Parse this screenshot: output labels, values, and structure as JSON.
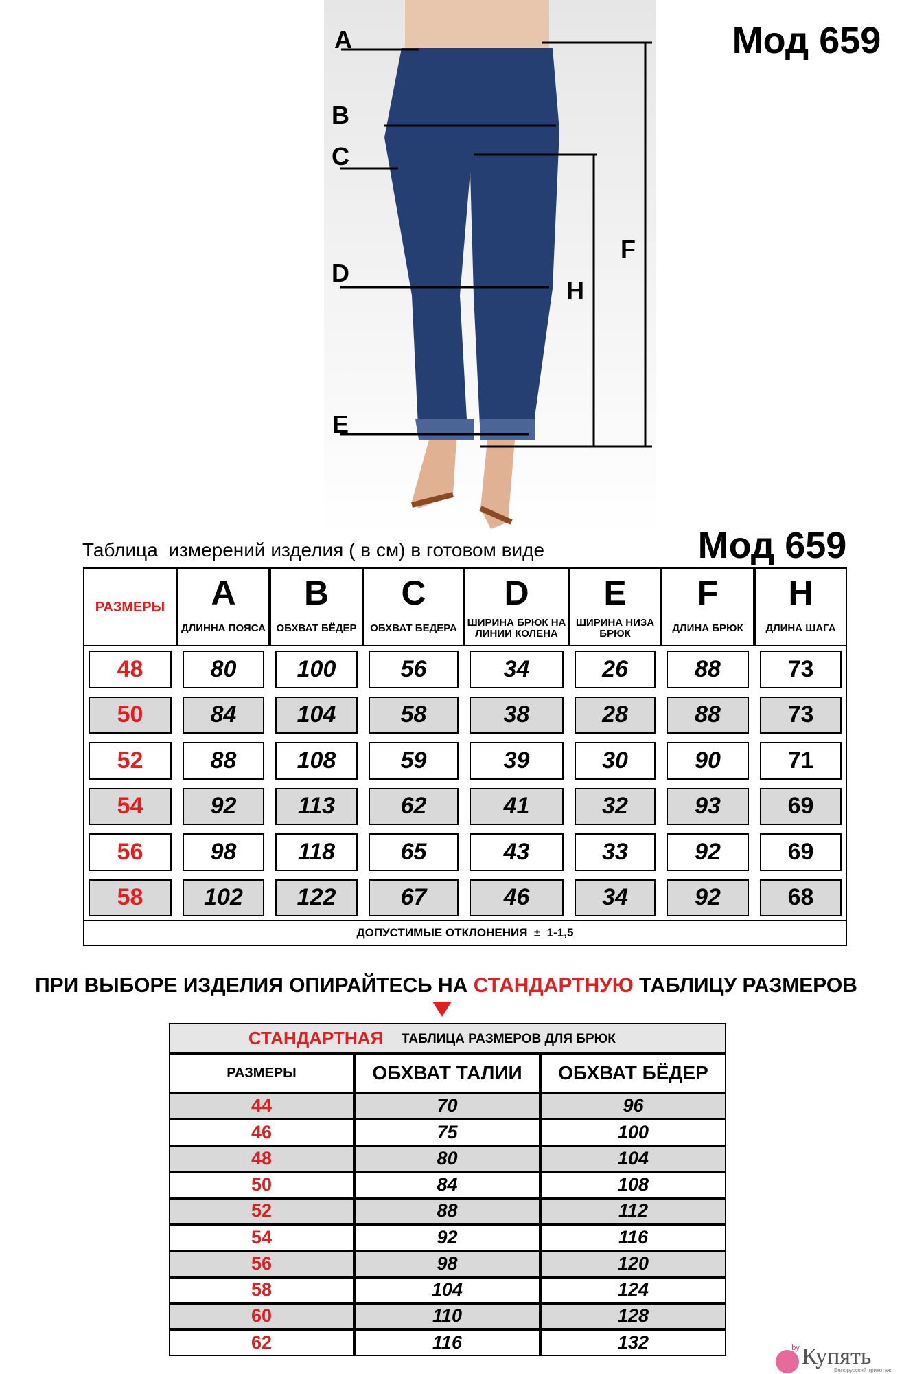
{
  "model_top": "Мод 659",
  "figure": {
    "labels": [
      "A",
      "B",
      "C",
      "D",
      "E",
      "F",
      "H"
    ]
  },
  "measurements": {
    "caption": "Таблица  измерений изделия ( в см) в готовом виде",
    "model": "Мод 659",
    "size_header": "РАЗМЕРЫ",
    "columns": [
      {
        "letter": "A",
        "name": "ДЛИННА ПОЯСА"
      },
      {
        "letter": "B",
        "name": "ОБХВАТ БЁДЕР"
      },
      {
        "letter": "C",
        "name": "ОБХВАТ БЕДЕРА"
      },
      {
        "letter": "D",
        "name": "ШИРИНА БРЮК НА ЛИНИИ КОЛЕНА"
      },
      {
        "letter": "E",
        "name": "ШИРИНА НИЗА БРЮК"
      },
      {
        "letter": "F",
        "name": "ДЛИНА БРЮК"
      },
      {
        "letter": "H",
        "name": "ДЛИНА ШАГА"
      }
    ],
    "rows": [
      [
        48,
        80,
        100,
        56,
        34,
        26,
        88,
        73
      ],
      [
        50,
        84,
        104,
        58,
        38,
        28,
        88,
        73
      ],
      [
        52,
        88,
        108,
        59,
        39,
        30,
        90,
        71
      ],
      [
        54,
        92,
        113,
        62,
        41,
        32,
        93,
        69
      ],
      [
        56,
        98,
        118,
        65,
        43,
        33,
        92,
        69
      ],
      [
        58,
        102,
        122,
        67,
        46,
        34,
        92,
        68
      ]
    ],
    "tolerance": "ДОПУСТИМЫЕ ОТКЛОНЕНИЯ  ±  1-1,5"
  },
  "notice": {
    "before": "ПРИ ВЫБОРЕ ИЗДЕЛИЯ ОПИРАЙТЕСЬ НА",
    "highlight": "СТАНДАРТНУЮ",
    "after": "ТАБЛИЦУ РАЗМЕРОВ"
  },
  "standard": {
    "title_highlight": "СТАНДАРТНАЯ",
    "title": "ТАБЛИЦА РАЗМЕРОВ ДЛЯ БРЮК",
    "headers": [
      "РАЗМЕРЫ",
      "ОБХВАТ ТАЛИИ",
      "ОБХВАТ БЁДЕР"
    ],
    "rows": [
      [
        44,
        70,
        96
      ],
      [
        46,
        75,
        100
      ],
      [
        48,
        80,
        104
      ],
      [
        50,
        84,
        108
      ],
      [
        52,
        88,
        112
      ],
      [
        54,
        92,
        116
      ],
      [
        56,
        98,
        120
      ],
      [
        58,
        104,
        124
      ],
      [
        60,
        110,
        128
      ],
      [
        62,
        116,
        132
      ]
    ]
  },
  "logo": {
    "name": "Купять",
    "tagline": "Белорусский трикотаж",
    "badge": "by"
  }
}
